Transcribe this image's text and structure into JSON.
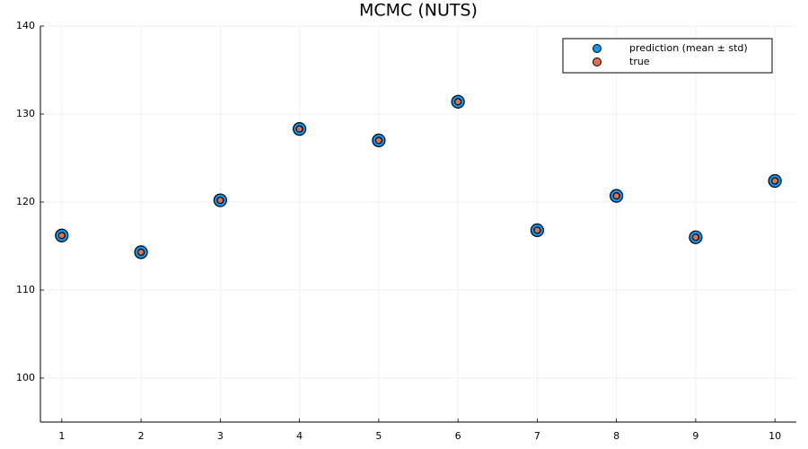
{
  "chart_data": {
    "type": "scatter",
    "title": "MCMC (NUTS)",
    "x": [
      1,
      2,
      3,
      4,
      5,
      6,
      7,
      8,
      9,
      10
    ],
    "series": [
      {
        "name": "prediction (mean ± std)",
        "color": "#009af9",
        "values": [
          116.2,
          114.3,
          120.2,
          128.3,
          127.0,
          131.4,
          116.8,
          120.7,
          116.0,
          122.4
        ]
      },
      {
        "name": "true",
        "color": "#e26f46",
        "values": [
          116.2,
          114.3,
          120.2,
          128.3,
          127.0,
          131.4,
          116.8,
          120.7,
          116.0,
          122.4
        ]
      }
    ],
    "xlim": [
      0.73,
      10.27
    ],
    "xticks": [
      1,
      2,
      3,
      4,
      5,
      6,
      7,
      8,
      9,
      10
    ],
    "ylim": [
      95,
      140
    ],
    "yticks": [
      100,
      110,
      120,
      130,
      140
    ],
    "grid": true,
    "legend": "top-right"
  }
}
